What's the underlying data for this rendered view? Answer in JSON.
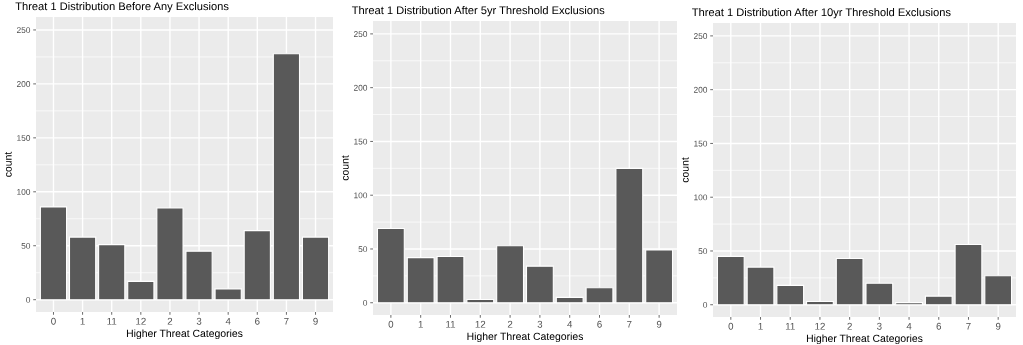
{
  "chart_data": [
    {
      "type": "bar",
      "title": "Threat 1 Distribution Before Any Exclusions",
      "xlabel": "Higher Threat Categories",
      "ylabel": "count",
      "categories": [
        "0",
        "1",
        "11",
        "12",
        "2",
        "3",
        "4",
        "6",
        "7",
        "9"
      ],
      "values": [
        86,
        58,
        51,
        17,
        85,
        45,
        10,
        64,
        228,
        58
      ],
      "color": "#595959",
      "ylim": [
        -11.4,
        262
      ],
      "yticks": [
        0,
        50,
        100,
        150,
        200,
        250
      ],
      "grid": true
    },
    {
      "type": "bar",
      "title": "Threat 1 Distribution After 5yr Threshold Exclusions",
      "xlabel": "Higher Threat Categories",
      "ylabel": "count",
      "categories": [
        "0",
        "1",
        "11",
        "12",
        "2",
        "3",
        "4",
        "6",
        "7",
        "9"
      ],
      "values": [
        69,
        42,
        43,
        3,
        53,
        34,
        5,
        14,
        125,
        49
      ],
      "color": "#595959",
      "ylim": [
        -11.4,
        262
      ],
      "yticks": [
        0,
        50,
        100,
        150,
        200,
        250
      ],
      "grid": true
    },
    {
      "type": "bar",
      "title": "Threat 1 Distribution After 10yr Threshold Exclusions",
      "xlabel": "Higher Threat Categories",
      "ylabel": "count",
      "categories": [
        "0",
        "1",
        "11",
        "12",
        "2",
        "3",
        "4",
        "6",
        "7",
        "9"
      ],
      "values": [
        45,
        35,
        18,
        3,
        43,
        20,
        2,
        8,
        56,
        27
      ],
      "color": "#595959",
      "ylim": [
        -11.4,
        262
      ],
      "yticks": [
        0,
        50,
        100,
        150,
        200,
        250
      ],
      "grid": true
    }
  ]
}
